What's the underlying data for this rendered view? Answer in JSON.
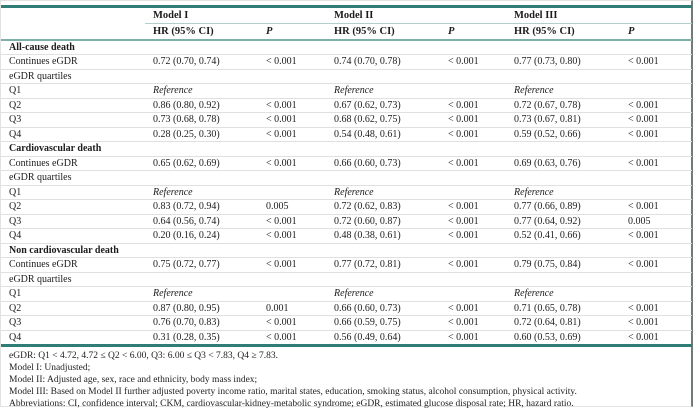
{
  "table": {
    "models": [
      "Model I",
      "Model II",
      "Model III"
    ],
    "subheaders": {
      "hr": "HR (95% CI)",
      "p": "P"
    },
    "reference_label": "Reference",
    "sections": [
      {
        "title": "All-cause death",
        "rows": [
          {
            "label": "Continues eGDR",
            "cells": [
              "0.72 (0.70, 0.74)",
              "< 0.001",
              "0.74 (0.70, 0.78)",
              "< 0.001",
              "0.77 (0.73, 0.80)",
              "< 0.001"
            ]
          },
          {
            "label": "eGDR quartiles",
            "cells": [
              "",
              "",
              "",
              "",
              "",
              ""
            ]
          },
          {
            "label": "Q1",
            "cells": [
              "Reference",
              "",
              "Reference",
              "",
              "Reference",
              ""
            ]
          },
          {
            "label": "Q2",
            "cells": [
              "0.86 (0.80, 0.92)",
              "< 0.001",
              "0.67 (0.62, 0.73)",
              "< 0.001",
              "0.72 (0.67, 0.78)",
              "< 0.001"
            ]
          },
          {
            "label": "Q3",
            "cells": [
              "0.73 (0.68, 0.78)",
              "< 0.001",
              "0.68 (0.62, 0.75)",
              "< 0.001",
              "0.73 (0.67, 0.81)",
              "< 0.001"
            ]
          },
          {
            "label": "Q4",
            "cells": [
              "0.28 (0.25, 0.30)",
              "< 0.001",
              "0.54 (0.48, 0.61)",
              "< 0.001",
              "0.59 (0.52, 0.66)",
              "< 0.001"
            ]
          }
        ]
      },
      {
        "title": "Cardiovascular death",
        "rows": [
          {
            "label": "Continues eGDR",
            "cells": [
              "0.65 (0.62, 0.69)",
              "< 0.001",
              "0.66 (0.60, 0.73)",
              "< 0.001",
              "0.69 (0.63, 0.76)",
              "< 0.001"
            ]
          },
          {
            "label": "eGDR quartiles",
            "cells": [
              "",
              "",
              "",
              "",
              "",
              ""
            ]
          },
          {
            "label": "Q1",
            "cells": [
              "Reference",
              "",
              "Reference",
              "",
              "Reference",
              ""
            ]
          },
          {
            "label": "Q2",
            "cells": [
              "0.83 (0.72, 0.94)",
              "0.005",
              "0.72 (0.62, 0.83)",
              "< 0.001",
              "0.77 (0.66, 0.89)",
              "< 0.001"
            ]
          },
          {
            "label": "Q3",
            "cells": [
              "0.64 (0.56, 0.74)",
              "< 0.001",
              "0.72 (0.60, 0.87)",
              "< 0.001",
              "0.77 (0.64, 0.92)",
              "0.005"
            ]
          },
          {
            "label": "Q4",
            "cells": [
              "0.20 (0.16, 0.24)",
              "< 0.001",
              "0.48 (0.38, 0.61)",
              "< 0.001",
              "0.52 (0.41, 0.66)",
              "< 0.001"
            ]
          }
        ]
      },
      {
        "title": "Non cardiovascular death",
        "rows": [
          {
            "label": "Continues eGDR",
            "cells": [
              "0.75 (0.72, 0.77)",
              "< 0.001",
              "0.77 (0.72, 0.81)",
              "< 0.001",
              "0.79 (0.75, 0.84)",
              "< 0.001"
            ]
          },
          {
            "label": "eGDR quartiles",
            "cells": [
              "",
              "",
              "",
              "",
              "",
              ""
            ]
          },
          {
            "label": "Q1",
            "cells": [
              "Reference",
              "",
              "Reference",
              "",
              "Reference",
              ""
            ]
          },
          {
            "label": "Q2",
            "cells": [
              "0.87 (0.80, 0.95)",
              "0.001",
              "0.66 (0.60, 0.73)",
              "< 0.001",
              "0.71 (0.65, 0.78)",
              "< 0.001"
            ]
          },
          {
            "label": "Q3",
            "cells": [
              "0.76 (0.70, 0.83)",
              "< 0.001",
              "0.66 (0.59, 0.75)",
              "< 0.001",
              "0.72 (0.64, 0.81)",
              "< 0.001"
            ]
          },
          {
            "label": "Q4",
            "cells": [
              "0.31 (0.28, 0.35)",
              "< 0.001",
              "0.56 (0.49, 0.64)",
              "< 0.001",
              "0.60 (0.53, 0.69)",
              "< 0.001"
            ]
          }
        ]
      }
    ]
  },
  "footnotes": [
    "eGDR: Q1 < 4.72, 4.72 ≤ Q2 < 6.00, Q3: 6.00 ≤ Q3 < 7.83, Q4 ≥ 7.83.",
    "Model I: Unadjusted;",
    "Model II: Adjusted age, sex, race and ethnicity, body mass index;",
    "Model III: Based on Model II further adjusted poverty income ratio, marital states, education, smoking status, alcohol consumption, physical activity.",
    "Abbreviations: CI, confidence interval; CKM, cardiovascular-kidney-metabolic syndrome; eGDR, estimated glucose disposal rate; HR, hazard ratio."
  ],
  "colors": {
    "rule_dark_teal": "#2f7d76",
    "rule_light_teal": "#b3cfcc",
    "rule_mid_teal": "#7fafaa",
    "row_divider": "#e0e0e0",
    "text": "#1c1c1c"
  }
}
